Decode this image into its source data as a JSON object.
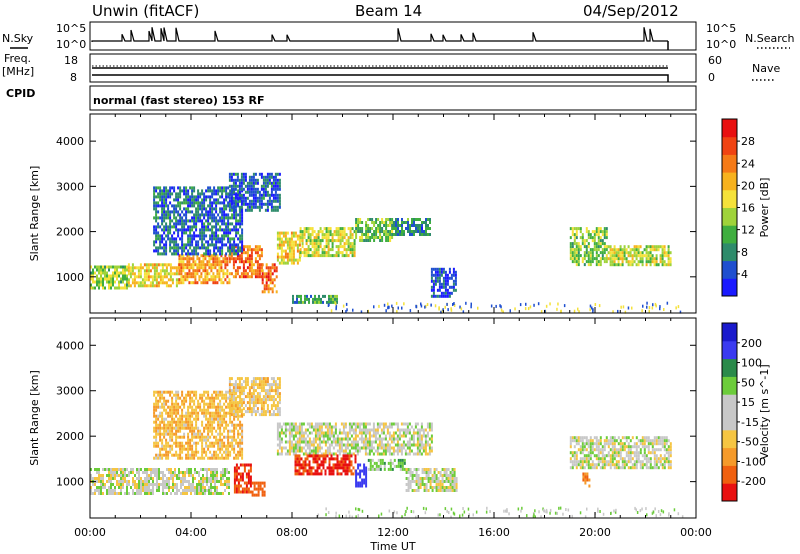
{
  "header": {
    "station": "Unwin (fitACF)",
    "beam": "Beam 14",
    "date": "04/Sep/2012"
  },
  "info_panel": {
    "left_top_label": "N.Sky",
    "left_top_ticks": [
      "10^5",
      "10^0"
    ],
    "right_top_label": "N.Search",
    "right_top_ticks": [
      "10^5",
      "10^0"
    ],
    "freq_label_1": "Freq.",
    "freq_label_2": "[MHz]",
    "freq_ticks": [
      "18",
      "8"
    ],
    "nave_label": "Nave",
    "nave_ticks": [
      "60",
      "0"
    ],
    "cpid_label": "CPID",
    "cpid_text": "normal (fast stereo) 153 RF"
  },
  "colors": {
    "power_scale": [
      "#1a1aff",
      "#1f4fcf",
      "#2e8b6b",
      "#3fae3f",
      "#9fd33a",
      "#f5e23a",
      "#f7b21e",
      "#f57a17",
      "#f04312",
      "#e81010"
    ],
    "velocity_scale": [
      "#1a1acc",
      "#3a3af0",
      "#2a8a4a",
      "#6ccc3a",
      "#c8c8c8",
      "#c8c8c8",
      "#f5c542",
      "#f59a2a",
      "#f0600f",
      "#e81010"
    ]
  },
  "chart_data": [
    {
      "type": "heatmap",
      "name": "power",
      "ylabel": "Slant Range [km]",
      "ylim": [
        200,
        4600
      ],
      "yticks": [
        1000,
        2000,
        3000,
        4000
      ],
      "xlim": [
        0,
        24
      ],
      "colorbar_label": "Power [dB]",
      "colorbar_ticks": [
        "4",
        "8",
        "12",
        "16",
        "20",
        "24",
        "28"
      ],
      "colorbar_range": [
        0,
        32
      ],
      "echo_regions": [
        {
          "t0": 0.0,
          "t1": 1.5,
          "r0": 750,
          "r1": 1250,
          "v": 14
        },
        {
          "t0": 1.5,
          "t1": 3.5,
          "r0": 800,
          "r1": 1300,
          "v": 18
        },
        {
          "t0": 3.5,
          "t1": 5.5,
          "r0": 900,
          "r1": 1500,
          "v": 22
        },
        {
          "t0": 5.5,
          "t1": 6.8,
          "r0": 1000,
          "r1": 1700,
          "v": 25
        },
        {
          "t0": 6.8,
          "t1": 7.4,
          "r0": 700,
          "r1": 1300,
          "v": 26
        },
        {
          "t0": 7.4,
          "t1": 8.3,
          "r0": 1300,
          "r1": 2000,
          "v": 18
        },
        {
          "t0": 8.3,
          "t1": 10.5,
          "r0": 1500,
          "r1": 2100,
          "v": 16
        },
        {
          "t0": 10.5,
          "t1": 12.0,
          "r0": 1800,
          "r1": 2300,
          "v": 12
        },
        {
          "t0": 12.0,
          "t1": 13.5,
          "r0": 1950,
          "r1": 2300,
          "v": 8
        },
        {
          "t0": 2.5,
          "t1": 6.0,
          "r0": 1500,
          "r1": 3000,
          "v": 6
        },
        {
          "t0": 5.5,
          "t1": 7.5,
          "r0": 2500,
          "r1": 3300,
          "v": 5
        },
        {
          "t0": 13.5,
          "t1": 14.5,
          "r0": 600,
          "r1": 1200,
          "v": 4
        },
        {
          "t0": 8.0,
          "t1": 9.8,
          "r0": 450,
          "r1": 600,
          "v": 10
        },
        {
          "t0": 19.0,
          "t1": 20.5,
          "r0": 1300,
          "r1": 2100,
          "v": 14
        },
        {
          "t0": 20.5,
          "t1": 23.0,
          "r0": 1300,
          "r1": 1700,
          "v": 16
        }
      ]
    },
    {
      "type": "heatmap",
      "name": "velocity",
      "xlabel": "Time UT",
      "ylabel": "Slant Range [km]",
      "ylim": [
        200,
        4600
      ],
      "yticks": [
        1000,
        2000,
        3000,
        4000
      ],
      "xlim": [
        0,
        24
      ],
      "xticks": [
        "00:00",
        "04:00",
        "08:00",
        "12:00",
        "16:00",
        "20:00",
        "00:00"
      ],
      "colorbar_label": "Velocity [m s^-1]",
      "colorbar_ticks": [
        "-200",
        "-100",
        "-50",
        "-15",
        "15",
        "50",
        "100",
        "200"
      ],
      "colorbar_range": [
        -250,
        250
      ],
      "echo_regions": [
        {
          "t0": 0.0,
          "t1": 5.5,
          "r0": 750,
          "r1": 1300,
          "v": 0
        },
        {
          "t0": 2.5,
          "t1": 6.0,
          "r0": 1500,
          "r1": 3000,
          "v": -40
        },
        {
          "t0": 5.5,
          "t1": 7.5,
          "r0": 2500,
          "r1": 3300,
          "v": -30
        },
        {
          "t0": 5.7,
          "t1": 6.4,
          "r0": 800,
          "r1": 1400,
          "v": -200
        },
        {
          "t0": 6.4,
          "t1": 6.9,
          "r0": 700,
          "r1": 1000,
          "v": -150
        },
        {
          "t0": 7.4,
          "t1": 13.5,
          "r0": 1600,
          "r1": 2300,
          "v": 0
        },
        {
          "t0": 8.1,
          "t1": 10.5,
          "r0": 1150,
          "r1": 1600,
          "v": -210
        },
        {
          "t0": 10.5,
          "t1": 10.9,
          "r0": 900,
          "r1": 1400,
          "v": 150
        },
        {
          "t0": 11.0,
          "t1": 12.5,
          "r0": 1300,
          "r1": 1500,
          "v": 30
        },
        {
          "t0": 12.5,
          "t1": 14.5,
          "r0": 800,
          "r1": 1300,
          "v": 0
        },
        {
          "t0": 19.0,
          "t1": 23.0,
          "r0": 1300,
          "r1": 2000,
          "v": 0
        },
        {
          "t0": 19.5,
          "t1": 19.8,
          "r0": 900,
          "r1": 1200,
          "v": -90
        }
      ]
    }
  ]
}
